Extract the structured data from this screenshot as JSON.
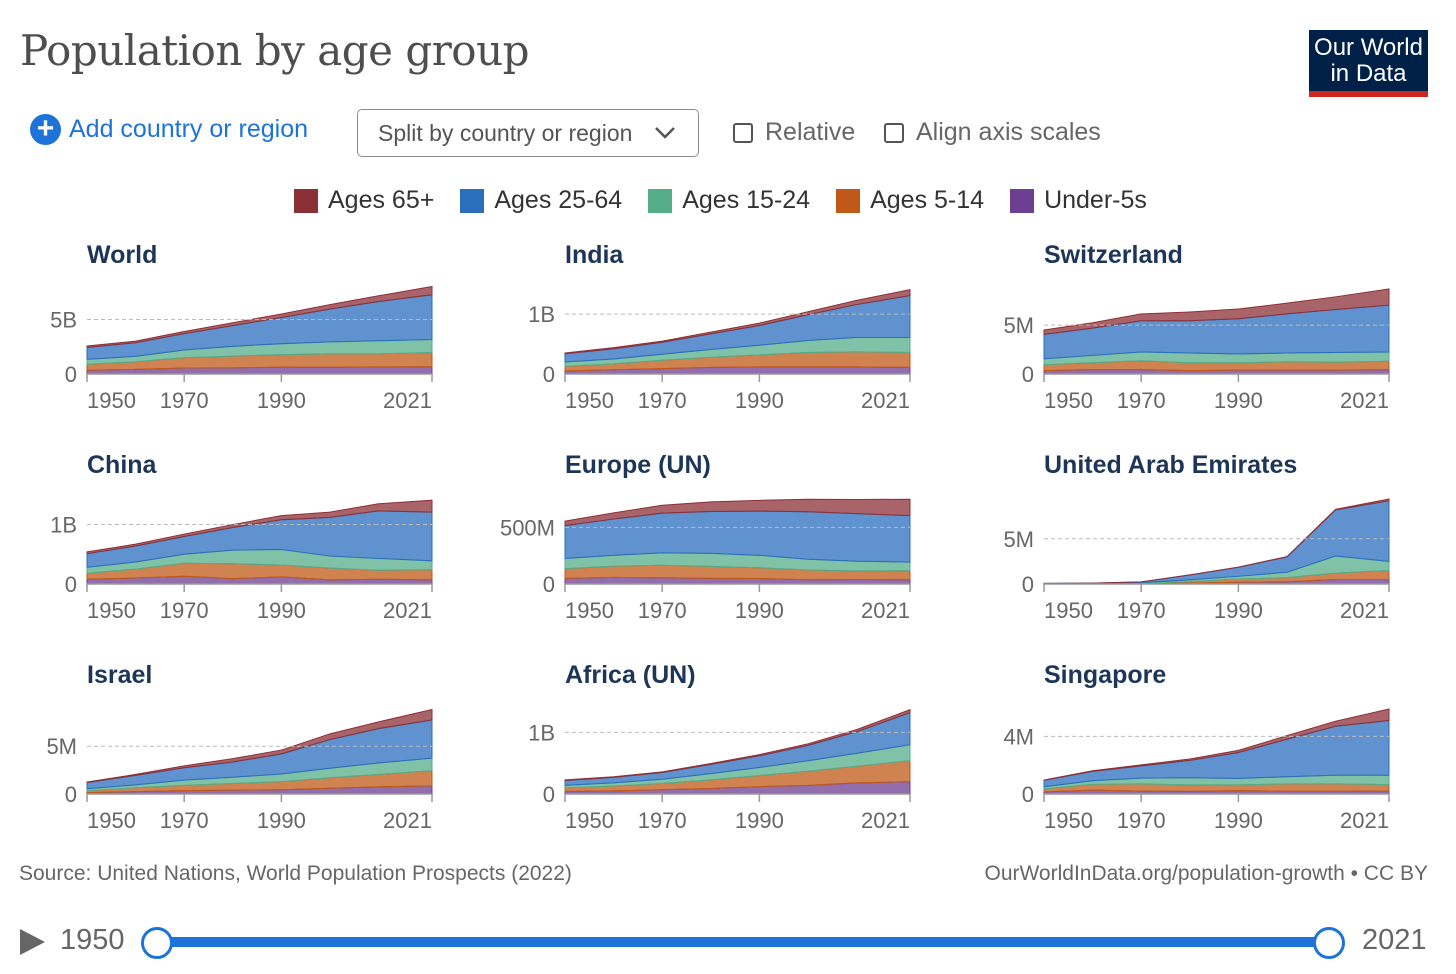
{
  "header": {
    "title": "Population by age group",
    "logo": "Our World in Data",
    "logo_line1": "Our World",
    "logo_line2": "in Data"
  },
  "controls": {
    "add_label": "Add country or region",
    "split_label": "Split by country or region",
    "relative_label": "Relative",
    "align_label": "Align axis scales",
    "relative_checked": false,
    "align_checked": false
  },
  "footer": {
    "source": "Source: United Nations, World Population Prospects (2022)",
    "credit": "OurWorldInData.org/population-growth • CC BY"
  },
  "timeline": {
    "start": "1950",
    "end": "2021"
  },
  "chart_data": {
    "type": "area",
    "stacked": true,
    "years": [
      1950,
      1960,
      1970,
      1980,
      1990,
      2000,
      2010,
      2021
    ],
    "x_ticks": [
      "1950",
      "1970",
      "1990",
      "2021"
    ],
    "legend": [
      {
        "name": "Ages 65+",
        "color": "#8c3038"
      },
      {
        "name": "Ages 25-64",
        "color": "#2a6ebd"
      },
      {
        "name": "Ages 15-24",
        "color": "#55ad8a"
      },
      {
        "name": "Ages 5-14",
        "color": "#c05917"
      },
      {
        "name": "Under-5s",
        "color": "#6d3e91"
      }
    ],
    "panels": [
      {
        "title": "World",
        "ytick": "5B",
        "ytick_value": 5,
        "ymax": 7.8,
        "series": {
          "Under-5s": [
            0.34,
            0.42,
            0.55,
            0.56,
            0.63,
            0.62,
            0.65,
            0.67
          ],
          "Ages 5-14": [
            0.55,
            0.7,
            0.95,
            1.08,
            1.15,
            1.23,
            1.2,
            1.3
          ],
          "Ages 15-24": [
            0.45,
            0.5,
            0.7,
            0.9,
            1.0,
            1.1,
            1.2,
            1.2
          ],
          "Ages 25-64": [
            1.1,
            1.25,
            1.5,
            1.9,
            2.4,
            3.0,
            3.6,
            4.1
          ],
          "Ages 65+": [
            0.13,
            0.15,
            0.2,
            0.26,
            0.33,
            0.42,
            0.53,
            0.76
          ]
        }
      },
      {
        "title": "India",
        "ytick": "1B",
        "ytick_value": 1,
        "ymax": 1.42,
        "series": {
          "Under-5s": [
            0.05,
            0.07,
            0.09,
            0.11,
            0.12,
            0.12,
            0.12,
            0.11
          ],
          "Ages 5-14": [
            0.08,
            0.1,
            0.14,
            0.17,
            0.2,
            0.24,
            0.25,
            0.25
          ],
          "Ages 15-24": [
            0.07,
            0.08,
            0.1,
            0.13,
            0.16,
            0.2,
            0.24,
            0.25
          ],
          "Ages 25-64": [
            0.14,
            0.17,
            0.2,
            0.26,
            0.33,
            0.43,
            0.55,
            0.7
          ],
          "Ages 65+": [
            0.01,
            0.02,
            0.02,
            0.03,
            0.04,
            0.05,
            0.07,
            0.1
          ]
        }
      },
      {
        "title": "Switzerland",
        "ytick": "5M",
        "ytick_value": 5,
        "ymax": 8.7,
        "series": {
          "Under-5s": [
            0.35,
            0.45,
            0.45,
            0.35,
            0.4,
            0.4,
            0.4,
            0.45
          ],
          "Ages 5-14": [
            0.6,
            0.7,
            0.9,
            0.8,
            0.75,
            0.85,
            0.8,
            0.85
          ],
          "Ages 15-24": [
            0.6,
            0.75,
            0.9,
            1.0,
            0.9,
            0.9,
            1.0,
            0.95
          ],
          "Ages 25-64": [
            2.5,
            2.8,
            3.2,
            3.3,
            3.6,
            4.0,
            4.4,
            4.8
          ],
          "Ages 65+": [
            0.45,
            0.55,
            0.7,
            0.9,
            1.0,
            1.1,
            1.3,
            1.65
          ]
        }
      },
      {
        "title": "China",
        "ytick": "1B",
        "ytick_value": 1,
        "ymax": 1.43,
        "series": {
          "Under-5s": [
            0.08,
            0.1,
            0.13,
            0.09,
            0.12,
            0.07,
            0.08,
            0.07
          ],
          "Ages 5-14": [
            0.1,
            0.15,
            0.22,
            0.25,
            0.2,
            0.2,
            0.15,
            0.17
          ],
          "Ages 15-24": [
            0.1,
            0.12,
            0.15,
            0.23,
            0.26,
            0.2,
            0.2,
            0.15
          ],
          "Ages 25-64": [
            0.23,
            0.27,
            0.3,
            0.38,
            0.5,
            0.65,
            0.8,
            0.82
          ],
          "Ages 65+": [
            0.03,
            0.03,
            0.04,
            0.05,
            0.07,
            0.09,
            0.12,
            0.2
          ]
        }
      },
      {
        "title": "Europe (UN)",
        "ytick": "500M",
        "ytick_value": 500,
        "ymax": 750,
        "series": {
          "Under-5s": [
            50,
            58,
            55,
            50,
            48,
            38,
            40,
            38
          ],
          "Ages 5-14": [
            85,
            100,
            110,
            105,
            95,
            85,
            76,
            80
          ],
          "Ages 15-24": [
            90,
            95,
            110,
            115,
            110,
            95,
            85,
            75
          ],
          "Ages 25-64": [
            290,
            320,
            350,
            370,
            390,
            420,
            420,
            410
          ],
          "Ages 65+": [
            40,
            55,
            70,
            85,
            95,
            110,
            125,
            145
          ]
        }
      },
      {
        "title": "United Arab Emirates",
        "ytick": "5M",
        "ytick_value": 5,
        "ymax": 9.4,
        "series": {
          "Under-5s": [
            0.01,
            0.015,
            0.04,
            0.1,
            0.2,
            0.25,
            0.5,
            0.5
          ],
          "Ages 5-14": [
            0.015,
            0.02,
            0.06,
            0.15,
            0.35,
            0.45,
            0.7,
            1.0
          ],
          "Ages 15-24": [
            0.01,
            0.015,
            0.05,
            0.2,
            0.3,
            0.6,
            1.9,
            1.0
          ],
          "Ages 25-64": [
            0.03,
            0.04,
            0.08,
            0.55,
            1.0,
            1.7,
            5.1,
            6.7
          ],
          "Ages 65+": [
            0.003,
            0.004,
            0.005,
            0.01,
            0.02,
            0.03,
            0.06,
            0.2
          ]
        }
      },
      {
        "title": "Israel",
        "ytick": "5M",
        "ytick_value": 5,
        "ymax": 8.9,
        "series": {
          "Under-5s": [
            0.15,
            0.25,
            0.35,
            0.4,
            0.45,
            0.6,
            0.75,
            0.85
          ],
          "Ages 5-14": [
            0.2,
            0.4,
            0.55,
            0.7,
            0.85,
            1.1,
            1.3,
            1.6
          ],
          "Ages 15-24": [
            0.2,
            0.3,
            0.55,
            0.65,
            0.8,
            1.0,
            1.2,
            1.3
          ],
          "Ages 25-64": [
            0.65,
            1.0,
            1.3,
            1.6,
            2.1,
            3.0,
            3.6,
            4.0
          ],
          "Ages 65+": [
            0.06,
            0.1,
            0.2,
            0.35,
            0.4,
            0.6,
            0.7,
            1.1
          ]
        }
      },
      {
        "title": "Africa (UN)",
        "ytick": "1B",
        "ytick_value": 1,
        "ymax": 1.38,
        "series": {
          "Under-5s": [
            0.04,
            0.05,
            0.07,
            0.09,
            0.12,
            0.14,
            0.18,
            0.2
          ],
          "Ages 5-14": [
            0.06,
            0.08,
            0.1,
            0.14,
            0.18,
            0.23,
            0.27,
            0.34
          ],
          "Ages 15-24": [
            0.04,
            0.05,
            0.07,
            0.1,
            0.13,
            0.17,
            0.21,
            0.26
          ],
          "Ages 25-64": [
            0.08,
            0.09,
            0.11,
            0.15,
            0.19,
            0.25,
            0.35,
            0.52
          ],
          "Ages 65+": [
            0.01,
            0.01,
            0.01,
            0.015,
            0.02,
            0.025,
            0.035,
            0.05
          ]
        }
      },
      {
        "title": "Singapore",
        "ytick": "4M",
        "ytick_value": 4,
        "ymax": 5.9,
        "series": {
          "Under-5s": [
            0.15,
            0.27,
            0.2,
            0.18,
            0.23,
            0.2,
            0.2,
            0.2
          ],
          "Ages 5-14": [
            0.2,
            0.4,
            0.5,
            0.45,
            0.4,
            0.5,
            0.5,
            0.45
          ],
          "Ages 15-24": [
            0.15,
            0.25,
            0.4,
            0.5,
            0.45,
            0.5,
            0.6,
            0.65
          ],
          "Ages 25-64": [
            0.45,
            0.65,
            0.85,
            1.2,
            1.8,
            2.6,
            3.4,
            3.8
          ],
          "Ages 65+": [
            0.02,
            0.04,
            0.07,
            0.1,
            0.15,
            0.25,
            0.35,
            0.8
          ]
        }
      }
    ]
  }
}
